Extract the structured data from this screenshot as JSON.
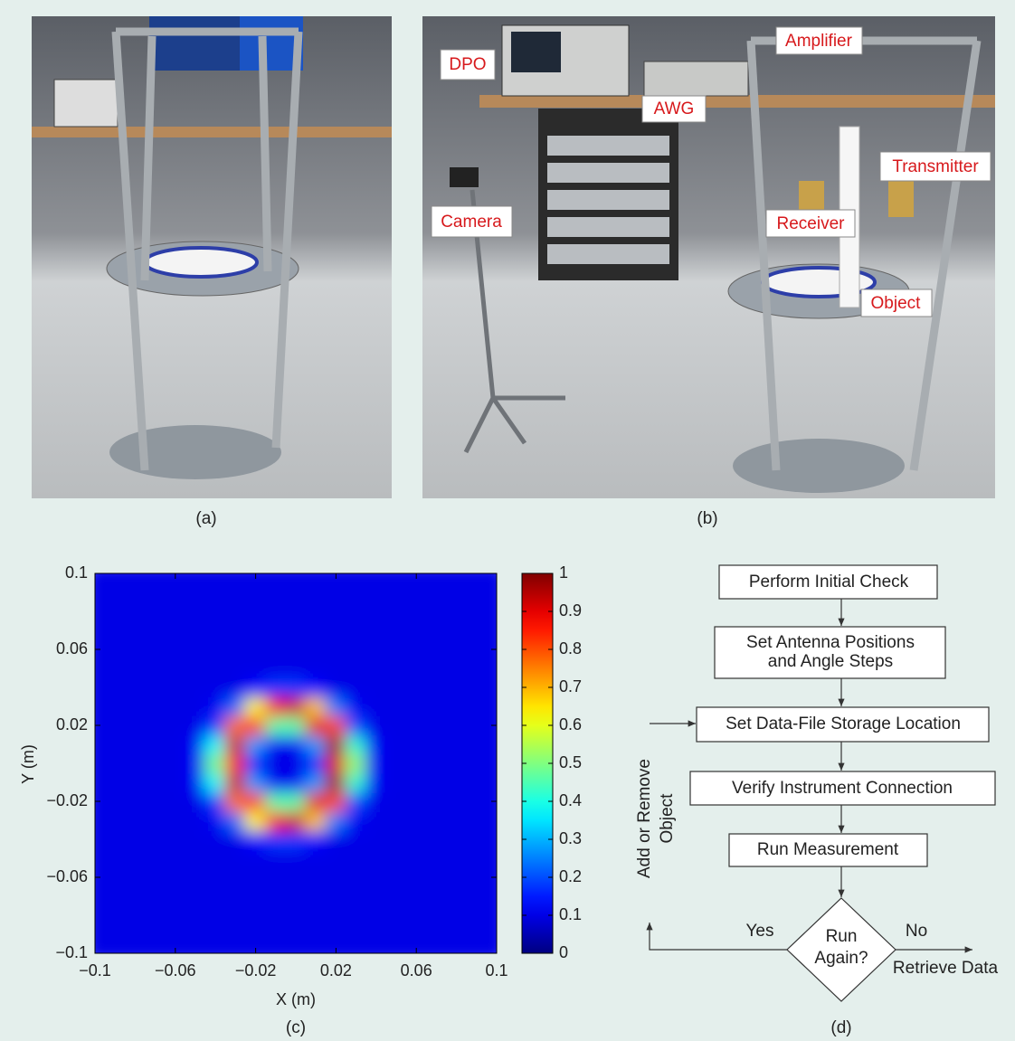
{
  "panel_a": {
    "caption": "(a)"
  },
  "panel_b": {
    "caption": "(b)",
    "labels": [
      "DPO",
      "Amplifier",
      "AWG",
      "Camera",
      "Transmitter",
      "Receiver",
      "Object"
    ]
  },
  "chart_data": {
    "type": "heatmap",
    "caption": "(c)",
    "xlabel": "X (m)",
    "ylabel": "Y (m)",
    "colormap": "jet",
    "x": [
      -0.1,
      -0.09,
      -0.08,
      -0.07,
      -0.06,
      -0.05,
      -0.04,
      -0.03,
      -0.02,
      -0.01,
      0,
      0.01,
      0.02,
      0.03,
      0.04,
      0.05,
      0.06,
      0.07,
      0.08,
      0.09,
      0.1
    ],
    "y": [
      -0.1,
      -0.09,
      -0.08,
      -0.07,
      -0.06,
      -0.05,
      -0.04,
      -0.03,
      -0.02,
      -0.01,
      0,
      0.01,
      0.02,
      0.03,
      0.04,
      0.05,
      0.06,
      0.07,
      0.08,
      0.09,
      0.1
    ],
    "z": [
      [
        0.1,
        0.1,
        0.1,
        0.1,
        0.1,
        0.1,
        0.1,
        0.1,
        0.1,
        0.1,
        0.1,
        0.1,
        0.1,
        0.1,
        0.1,
        0.1,
        0.1,
        0.1,
        0.1,
        0.1,
        0.1
      ],
      [
        0.1,
        0.1,
        0.1,
        0.1,
        0.1,
        0.1,
        0.1,
        0.1,
        0.1,
        0.1,
        0.1,
        0.1,
        0.1,
        0.1,
        0.1,
        0.1,
        0.1,
        0.1,
        0.1,
        0.1,
        0.1
      ],
      [
        0.1,
        0.1,
        0.1,
        0.1,
        0.1,
        0.1,
        0.1,
        0.1,
        0.1,
        0.1,
        0.1,
        0.1,
        0.1,
        0.1,
        0.1,
        0.1,
        0.1,
        0.1,
        0.1,
        0.1,
        0.1
      ],
      [
        0.1,
        0.1,
        0.1,
        0.1,
        0.1,
        0.1,
        0.1,
        0.1,
        0.1,
        0.1,
        0.1,
        0.1,
        0.1,
        0.1,
        0.1,
        0.1,
        0.1,
        0.1,
        0.1,
        0.1,
        0.1
      ],
      [
        0.1,
        0.1,
        0.1,
        0.1,
        0.1,
        0.1,
        0.1,
        0.1,
        0.1,
        0.1,
        0.1,
        0.1,
        0.1,
        0.1,
        0.1,
        0.1,
        0.1,
        0.1,
        0.1,
        0.1,
        0.1
      ],
      [
        0.1,
        0.1,
        0.1,
        0.1,
        0.1,
        0.1,
        0.1,
        0.1,
        0.1,
        0.1,
        0.1,
        0.1,
        0.1,
        0.1,
        0.1,
        0.1,
        0.1,
        0.1,
        0.1,
        0.1,
        0.1
      ],
      [
        0.1,
        0.1,
        0.1,
        0.1,
        0.1,
        0.1,
        0.1,
        0.1,
        0.13,
        0.18,
        0.18,
        0.13,
        0.1,
        0.1,
        0.1,
        0.1,
        0.1,
        0.1,
        0.1,
        0.1,
        0.1
      ],
      [
        0.1,
        0.1,
        0.1,
        0.1,
        0.1,
        0.1,
        0.11,
        0.23,
        0.63,
        0.88,
        0.92,
        0.68,
        0.25,
        0.11,
        0.1,
        0.1,
        0.1,
        0.1,
        0.1,
        0.1,
        0.1
      ],
      [
        0.1,
        0.1,
        0.1,
        0.1,
        0.1,
        0.1,
        0.18,
        0.76,
        0.84,
        0.46,
        0.46,
        0.9,
        0.8,
        0.2,
        0.1,
        0.1,
        0.1,
        0.1,
        0.1,
        0.1,
        0.1
      ],
      [
        0.1,
        0.1,
        0.1,
        0.1,
        0.1,
        0.11,
        0.38,
        0.93,
        0.28,
        0.11,
        0.11,
        0.28,
        0.97,
        0.42,
        0.11,
        0.1,
        0.1,
        0.1,
        0.1,
        0.1,
        0.1
      ],
      [
        0.1,
        0.1,
        0.1,
        0.1,
        0.1,
        0.11,
        0.49,
        0.84,
        0.16,
        0.1,
        0.1,
        0.16,
        0.9,
        0.52,
        0.11,
        0.1,
        0.1,
        0.1,
        0.1,
        0.1,
        0.1
      ],
      [
        0.1,
        0.1,
        0.1,
        0.1,
        0.1,
        0.11,
        0.38,
        0.93,
        0.28,
        0.11,
        0.11,
        0.28,
        0.97,
        0.42,
        0.11,
        0.1,
        0.1,
        0.1,
        0.1,
        0.1,
        0.1
      ],
      [
        0.1,
        0.1,
        0.1,
        0.1,
        0.1,
        0.1,
        0.18,
        0.76,
        0.84,
        0.46,
        0.46,
        0.9,
        0.8,
        0.2,
        0.1,
        0.1,
        0.1,
        0.1,
        0.1,
        0.1,
        0.1
      ],
      [
        0.1,
        0.1,
        0.1,
        0.1,
        0.1,
        0.1,
        0.11,
        0.23,
        0.63,
        0.88,
        0.92,
        0.68,
        0.25,
        0.11,
        0.1,
        0.1,
        0.1,
        0.1,
        0.1,
        0.1,
        0.1
      ],
      [
        0.1,
        0.1,
        0.1,
        0.1,
        0.1,
        0.1,
        0.1,
        0.1,
        0.13,
        0.18,
        0.18,
        0.13,
        0.1,
        0.1,
        0.1,
        0.1,
        0.1,
        0.1,
        0.1,
        0.1,
        0.1
      ],
      [
        0.1,
        0.1,
        0.1,
        0.1,
        0.1,
        0.1,
        0.1,
        0.1,
        0.1,
        0.1,
        0.1,
        0.1,
        0.1,
        0.1,
        0.1,
        0.1,
        0.1,
        0.1,
        0.1,
        0.1,
        0.1
      ],
      [
        0.1,
        0.1,
        0.1,
        0.1,
        0.1,
        0.1,
        0.1,
        0.1,
        0.1,
        0.1,
        0.1,
        0.1,
        0.1,
        0.1,
        0.1,
        0.1,
        0.1,
        0.1,
        0.1,
        0.1,
        0.1
      ],
      [
        0.1,
        0.1,
        0.1,
        0.1,
        0.1,
        0.1,
        0.1,
        0.1,
        0.1,
        0.1,
        0.1,
        0.1,
        0.1,
        0.1,
        0.1,
        0.1,
        0.1,
        0.1,
        0.1,
        0.1,
        0.1
      ],
      [
        0.1,
        0.1,
        0.1,
        0.1,
        0.1,
        0.1,
        0.1,
        0.1,
        0.1,
        0.1,
        0.1,
        0.1,
        0.1,
        0.1,
        0.1,
        0.1,
        0.1,
        0.1,
        0.1,
        0.1,
        0.1
      ],
      [
        0.1,
        0.1,
        0.1,
        0.1,
        0.1,
        0.1,
        0.1,
        0.1,
        0.1,
        0.1,
        0.1,
        0.1,
        0.1,
        0.1,
        0.1,
        0.1,
        0.1,
        0.1,
        0.1,
        0.1,
        0.1
      ],
      [
        0.1,
        0.1,
        0.1,
        0.1,
        0.1,
        0.1,
        0.1,
        0.1,
        0.1,
        0.1,
        0.1,
        0.1,
        0.1,
        0.1,
        0.1,
        0.1,
        0.1,
        0.1,
        0.1,
        0.1,
        0.1
      ]
    ],
    "xlim": [
      -0.1,
      0.1
    ],
    "ylim": [
      -0.1,
      0.1
    ],
    "xticks": [
      {
        "value": -0.1,
        "label": "−0.1"
      },
      {
        "value": -0.06,
        "label": "−0.06"
      },
      {
        "value": -0.02,
        "label": "−0.02"
      },
      0.02,
      0.06,
      0.1
    ],
    "yticks": [
      {
        "value": -0.1,
        "label": "−0.1"
      },
      {
        "value": -0.06,
        "label": "−0.06"
      },
      {
        "value": -0.02,
        "label": "−0.02"
      },
      0.02,
      0.06,
      0.1
    ],
    "colorbar": {
      "lim": [
        0,
        1
      ],
      "ticks": [
        0,
        0.1,
        0.2,
        0.3,
        0.4,
        0.5,
        0.6,
        0.7,
        0.8,
        0.9,
        1
      ]
    }
  },
  "flowchart": {
    "caption": "(d)",
    "nodes": [
      {
        "lines": [
          "Perform Initial Check"
        ]
      },
      {
        "lines": [
          "Set Antenna Positions",
          "and Angle Steps"
        ]
      },
      {
        "lines": [
          "Set Data-File Storage Location"
        ]
      },
      {
        "lines": [
          "Verify Instrument Connection"
        ]
      },
      {
        "lines": [
          "Run Measurement"
        ]
      }
    ],
    "decision": {
      "lines": [
        "Run",
        "Again?"
      ]
    },
    "edges": {
      "yes": "Yes",
      "no": "No",
      "exit": "Retrieve Data",
      "loop": [
        "Add or Remove",
        "Object"
      ]
    }
  }
}
